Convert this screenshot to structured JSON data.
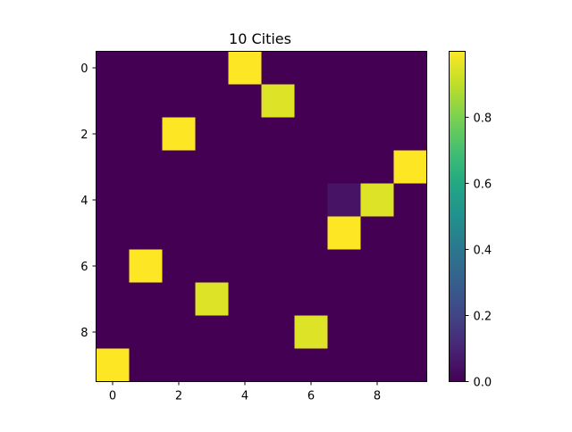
{
  "chart_data": {
    "type": "heatmap",
    "title": "10 Cities",
    "xlabel": "",
    "ylabel": "",
    "rows": 10,
    "cols": 10,
    "values": [
      [
        0,
        0,
        0,
        0,
        1.0,
        0,
        0,
        0,
        0,
        0
      ],
      [
        0,
        0,
        0,
        0,
        0,
        0.95,
        0,
        0,
        0,
        0
      ],
      [
        0,
        0,
        1.0,
        0,
        0,
        0,
        0,
        0,
        0,
        0
      ],
      [
        0,
        0,
        0,
        0,
        0,
        0,
        0,
        0,
        0,
        1.0
      ],
      [
        0,
        0,
        0,
        0,
        0,
        0,
        0,
        0.05,
        0.95,
        0
      ],
      [
        0,
        0,
        0,
        0,
        0,
        0,
        0,
        1.0,
        0,
        0
      ],
      [
        0,
        1.0,
        0,
        0,
        0,
        0,
        0,
        0,
        0,
        0
      ],
      [
        0,
        0,
        0,
        0.95,
        0,
        0,
        0,
        0,
        0,
        0
      ],
      [
        0,
        0,
        0,
        0,
        0,
        0,
        0.95,
        0,
        0,
        0
      ],
      [
        1.0,
        0,
        0,
        0,
        0,
        0,
        0,
        0,
        0,
        0
      ]
    ],
    "x_ticks": [
      0,
      2,
      4,
      6,
      8
    ],
    "y_ticks": [
      0,
      2,
      4,
      6,
      8
    ],
    "colorbar": {
      "colormap": "viridis",
      "range": [
        0,
        1
      ],
      "ticks": [
        {
          "value": 0.0,
          "label": "0.0"
        },
        {
          "value": 0.2,
          "label": "0.2"
        },
        {
          "value": 0.4,
          "label": "0.4"
        },
        {
          "value": 0.6,
          "label": "0.6"
        },
        {
          "value": 0.8,
          "label": "0.8"
        }
      ]
    },
    "grid": false
  }
}
